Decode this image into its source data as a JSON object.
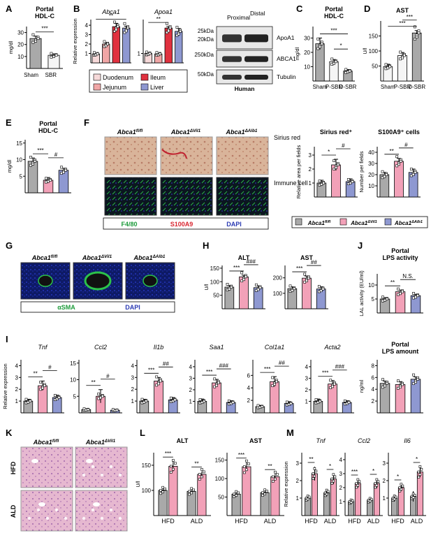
{
  "colors": {
    "grey": "#a9a9a9",
    "pink": "#f2a1b8",
    "blue": "#8e98d1",
    "duo": "#f6d9d9",
    "jej": "#f0a6a6",
    "ile": "#e0313f",
    "liv": "#8e98d1",
    "open": "#f5f5f5"
  },
  "panels": {
    "A": {
      "label": "A",
      "title": [
        "Portal",
        "HDL-C"
      ],
      "ylabel": "mg/dl",
      "yticks": [
        "10",
        "20",
        "30"
      ],
      "ylim": [
        0,
        35
      ],
      "groups": [
        "Sham",
        "SBR"
      ],
      "values": [
        25,
        11
      ],
      "errors": [
        2,
        1.2
      ],
      "colors": [
        "grey",
        "open"
      ],
      "stars": [
        {
          "from": 0,
          "to": 1,
          "text": "***"
        }
      ]
    },
    "B": {
      "label": "B",
      "ylabel": "Relative expression",
      "charts": [
        {
          "title": "Abca1",
          "yticks": [
            "1",
            "2",
            "3",
            "4"
          ],
          "ylim": [
            0,
            4.6
          ],
          "values": [
            0.95,
            2,
            3.85,
            3.7
          ],
          "errors": [
            0.05,
            0.15,
            0.35,
            0.2
          ],
          "stars": [
            {
              "from": 0,
              "to": 3,
              "text": "**"
            }
          ]
        },
        {
          "title": "Apoa1",
          "yticks": [
            "1"
          ],
          "ylim": [
            0,
            4.6
          ],
          "values": [
            1,
            0.95,
            3.7,
            3.35
          ],
          "errors": [
            0.05,
            0.05,
            0.15,
            0.3
          ],
          "stars": [
            {
              "from": 0,
              "to": 2,
              "text": "**"
            }
          ]
        }
      ],
      "legend": [
        "Duodenum",
        "Ileum",
        "Jejunum",
        "Liver"
      ],
      "legendColors": [
        "duo",
        "ile",
        "jej",
        "liv"
      ],
      "blot": {
        "cols": [
          "Proximal",
          "Distal"
        ],
        "rows": [
          {
            "marker": [
              "25kDa",
              "20kDa"
            ],
            "name": "ApoA1"
          },
          {
            "marker": [
              "250kDa"
            ],
            "name": "ABCA1"
          },
          {
            "marker": [
              "50kDa"
            ],
            "name": "Tubulin"
          }
        ],
        "footer": "Human"
      }
    },
    "C": {
      "label": "C",
      "title": [
        "Portal",
        "HDL-C"
      ],
      "ylabel": "mg/dl",
      "yticks": [
        "10",
        "20",
        "30"
      ],
      "ylim": [
        0,
        38
      ],
      "groups": [
        "Sham",
        "P-SBR",
        "D-SBR"
      ],
      "values": [
        26,
        13.5,
        7
      ],
      "errors": [
        4,
        1.5,
        1
      ],
      "colors": [
        "grey",
        "open",
        "grey"
      ],
      "stars": [
        {
          "from": 0,
          "to": 2,
          "text": "***"
        },
        {
          "from": 1,
          "to": 2,
          "text": "*"
        }
      ]
    },
    "D": {
      "label": "D",
      "title": [
        "AST"
      ],
      "ylabel": "U/l",
      "yticks": [
        "50",
        "100",
        "150"
      ],
      "ylim": [
        0,
        200
      ],
      "groups": [
        "Sham",
        "P-SBR",
        "D-SBR"
      ],
      "values": [
        48,
        85,
        160
      ],
      "errors": [
        8,
        10,
        8
      ],
      "colors": [
        "open",
        "open",
        "grey"
      ],
      "stars": [
        {
          "from": 0,
          "to": 2,
          "text": "***"
        },
        {
          "from": 1,
          "to": 2,
          "text": "***"
        }
      ]
    },
    "E": {
      "label": "E",
      "title": [
        "Portal",
        "HDL-C"
      ],
      "ylabel": "mg/dl",
      "yticks": [
        "5",
        "10",
        "15"
      ],
      "ylim": [
        0,
        16
      ],
      "values": [
        9.5,
        3.8,
        6.8
      ],
      "errors": [
        1,
        0.8,
        0.6
      ],
      "stars": [
        {
          "from": 0,
          "to": 1,
          "text": "***"
        },
        {
          "from": 1,
          "to": 2,
          "text": "#"
        }
      ]
    },
    "F": {
      "label": "F",
      "cols": [
        "Abca1fl/fl",
        "Abca1ΔVil1",
        "Abca1ΔAlb1"
      ],
      "rowLabels": [
        "Sirius red",
        "Immune cell"
      ],
      "stainLegend": [
        "F4/80",
        "S100A9",
        "DAPI"
      ],
      "charts": [
        {
          "title": "Sirius red⁺",
          "ylabel": [
            "Relative area per fields"
          ],
          "yticks": [
            "1",
            "2",
            "3"
          ],
          "ylim": [
            0,
            3.6
          ],
          "values": [
            1,
            2.3,
            1.1
          ],
          "errors": [
            0.2,
            0.4,
            0.2
          ],
          "stars": [
            {
              "from": 0,
              "to": 1,
              "text": "*"
            },
            {
              "from": 1,
              "to": 2,
              "text": "#"
            }
          ]
        },
        {
          "title": "S100A9⁺ cells",
          "ylabel": [
            "Number per fields"
          ],
          "yticks": [
            "10",
            "20",
            "30",
            "40"
          ],
          "ylim": [
            0,
            45
          ],
          "values": [
            20,
            32,
            22
          ],
          "errors": [
            2,
            2.5,
            3
          ],
          "stars": [
            {
              "from": 0,
              "to": 1,
              "text": "**"
            },
            {
              "from": 1,
              "to": 2,
              "text": "#"
            }
          ]
        }
      ],
      "legend": [
        "Abca1fl/fl",
        "Abca1ΔVil1",
        "Abca1ΔAlb1"
      ]
    },
    "G": {
      "label": "G",
      "cols": [
        "Abca1fl/fl",
        "Abca1ΔVil1",
        "Abca1ΔAlb1"
      ],
      "stainLegend": [
        "αSMA",
        "DAPI"
      ]
    },
    "H": {
      "label": "H",
      "ylabel": "U/l",
      "charts": [
        {
          "title": "ALT",
          "yticks": [
            "50",
            "100",
            "150"
          ],
          "ylim": [
            0,
            160
          ],
          "values": [
            80,
            118,
            78
          ],
          "errors": [
            6,
            6,
            7
          ],
          "stars": [
            {
              "from": 0,
              "to": 1,
              "text": "***"
            },
            {
              "from": 1,
              "to": 2,
              "text": "###"
            }
          ]
        },
        {
          "title": "AST",
          "yticks": [
            "100",
            "200"
          ],
          "ylim": [
            0,
            280
          ],
          "values": [
            130,
            198,
            128
          ],
          "errors": [
            12,
            14,
            14
          ],
          "stars": [
            {
              "from": 0,
              "to": 1,
              "text": "***"
            },
            {
              "from": 1,
              "to": 2,
              "text": "##"
            }
          ]
        }
      ]
    },
    "J": {
      "label": "J",
      "title": [
        "Portal",
        "LPS activity"
      ],
      "ylabel": "LAL activity (EU/ml)",
      "yticks": [
        "5",
        "10"
      ],
      "ylim": [
        0,
        14
      ],
      "values": [
        5,
        7.6,
        6.2
      ],
      "errors": [
        0.5,
        0.6,
        0.5
      ],
      "stars": [
        {
          "from": 0,
          "to": 1,
          "text": "**"
        },
        {
          "from": 1,
          "to": 2,
          "text": "N.S."
        }
      ]
    },
    "I": {
      "label": "I",
      "ylabel": "Relative expression",
      "charts": [
        {
          "title": "Tnf",
          "yticks": [
            "1",
            "2",
            "3",
            "4"
          ],
          "ylim": [
            0,
            4.5
          ],
          "values": [
            1,
            2.3,
            1.3
          ],
          "errors": [
            0.15,
            0.4,
            0.2
          ],
          "stars": [
            {
              "from": 0,
              "to": 1,
              "text": "**"
            },
            {
              "from": 1,
              "to": 2,
              "text": "#"
            }
          ]
        },
        {
          "title": "Ccl2",
          "yticks": [
            "5",
            "10",
            "15"
          ],
          "ylim": [
            0,
            16
          ],
          "values": [
            1,
            5,
            0.8
          ],
          "errors": [
            0.2,
            2,
            0.2
          ],
          "stars": [
            {
              "from": 0,
              "to": 1,
              "text": "**"
            },
            {
              "from": 1,
              "to": 2,
              "text": "#"
            }
          ]
        },
        {
          "title": "Il1b",
          "yticks": [
            "1",
            "2",
            "3",
            "4"
          ],
          "ylim": [
            0,
            4.5
          ],
          "values": [
            1,
            2.7,
            1.1
          ],
          "errors": [
            0.15,
            0.3,
            0.2
          ],
          "stars": [
            {
              "from": 0,
              "to": 1,
              "text": "***"
            },
            {
              "from": 1,
              "to": 2,
              "text": "##"
            }
          ]
        },
        {
          "title": "Saa1",
          "yticks": [
            "1",
            "2",
            "3",
            "4"
          ],
          "ylim": [
            0,
            4.6
          ],
          "values": [
            1,
            2.6,
            0.9
          ],
          "errors": [
            0.2,
            0.3,
            0.15
          ],
          "stars": [
            {
              "from": 0,
              "to": 1,
              "text": "***"
            },
            {
              "from": 1,
              "to": 2,
              "text": "###"
            }
          ]
        },
        {
          "title": "Col1a1",
          "yticks": [
            "2",
            "4",
            "6"
          ],
          "ylim": [
            0,
            8.5
          ],
          "values": [
            1,
            5,
            1.5
          ],
          "errors": [
            0.2,
            0.8,
            0.3
          ],
          "stars": [
            {
              "from": 0,
              "to": 1,
              "text": "***"
            },
            {
              "from": 1,
              "to": 2,
              "text": "##"
            }
          ]
        },
        {
          "title": "Acta2",
          "yticks": [
            "1",
            "2",
            "3",
            "4"
          ],
          "ylim": [
            0,
            4.6
          ],
          "values": [
            1,
            2.5,
            0.9
          ],
          "errors": [
            0.2,
            0.3,
            0.15
          ],
          "stars": [
            {
              "from": 0,
              "to": 1,
              "text": "***"
            },
            {
              "from": 1,
              "to": 2,
              "text": "###"
            }
          ]
        }
      ],
      "lps": {
        "title": [
          "Portal",
          "LPS amount"
        ],
        "ylabel": "ng/ml",
        "yticks": [
          "2",
          "4",
          "6",
          "8"
        ],
        "ylim": [
          0,
          9
        ],
        "values": [
          5,
          4.8,
          5.7
        ],
        "errors": [
          0.4,
          0.5,
          0.4
        ]
      }
    },
    "K": {
      "label": "K",
      "cols": [
        "Abca1fl/fl",
        "Abca1ΔVil1"
      ],
      "rows": [
        "HFD",
        "ALD"
      ]
    },
    "L": {
      "label": "L",
      "ylabel": "U/l",
      "groups": [
        "HFD",
        "ALD"
      ],
      "charts": [
        {
          "title": "ALT",
          "yticks": [
            "100",
            "150"
          ],
          "ylim": [
            50,
            175
          ],
          "values": [
            [
              100,
              148
            ],
            [
              98,
              132
            ]
          ],
          "errors": [
            [
              6,
              10
            ],
            [
              4,
              6
            ]
          ],
          "stars": [
            "***",
            "**"
          ]
        },
        {
          "title": "AST",
          "yticks": [
            "50",
            "100",
            "150"
          ],
          "ylim": [
            0,
            170
          ],
          "values": [
            [
              58,
              132
            ],
            [
              62,
              105
            ]
          ],
          "errors": [
            [
              8,
              12
            ],
            [
              6,
              8
            ]
          ],
          "stars": [
            "***",
            "**"
          ]
        }
      ]
    },
    "M": {
      "label": "M",
      "ylabel": "Relative expression",
      "groups": [
        "HFD",
        "ALD"
      ],
      "charts": [
        {
          "title": "Tnf",
          "yticks": [
            "1",
            "2",
            "3"
          ],
          "ylim": [
            0,
            3.6
          ],
          "values": [
            [
              1,
              2.4
            ],
            [
              1.3,
              2.1
            ]
          ],
          "errors": [
            [
              0.15,
              0.4
            ],
            [
              0.2,
              0.3
            ]
          ],
          "stars": [
            "**",
            "*"
          ]
        },
        {
          "title": "Ccl2",
          "yticks": [
            "1",
            "2",
            "3",
            "4"
          ],
          "ylim": [
            0,
            4.5
          ],
          "values": [
            [
              1,
              2.3
            ],
            [
              1.1,
              2.3
            ]
          ],
          "errors": [
            [
              0.2,
              0.3
            ],
            [
              0.2,
              0.35
            ]
          ],
          "stars": [
            "***",
            "*"
          ]
        },
        {
          "title": "Il6",
          "yticks": [
            "1",
            "2",
            "3"
          ],
          "ylim": [
            0,
            3.6
          ],
          "values": [
            [
              1,
              1.6
            ],
            [
              1.1,
              2.5
            ]
          ],
          "errors": [
            [
              0.2,
              0.2
            ],
            [
              0.3,
              0.3
            ]
          ],
          "stars": [
            "*",
            "*"
          ]
        }
      ]
    }
  }
}
